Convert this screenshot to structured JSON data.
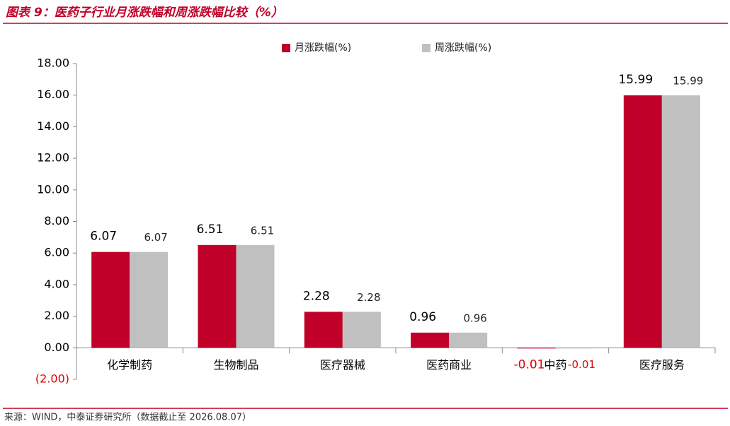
{
  "chart_data": {
    "type": "bar",
    "title": "图表 9：医药子行业月涨跌幅和周涨跌幅比较（%）",
    "source": "来源：WIND，中泰证券研究所（数据截止至 2026.08.07）",
    "categories": [
      "化学制药",
      "生物制品",
      "医疗器械",
      "医药商业",
      "中药",
      "医疗服务"
    ],
    "series": [
      {
        "name": "月涨跌幅(%)",
        "color": "#c00028",
        "values": [
          6.07,
          6.51,
          2.28,
          0.96,
          -0.01,
          15.99
        ]
      },
      {
        "name": "周涨跌幅(%)",
        "color": "#c0c0c0",
        "values": [
          6.07,
          6.51,
          2.28,
          0.96,
          -0.01,
          15.99
        ]
      }
    ],
    "ylim": [
      -2,
      18
    ],
    "yticks": [
      {
        "value": -2,
        "label": "(2.00)"
      },
      {
        "value": 0,
        "label": "0.00"
      },
      {
        "value": 2,
        "label": "2.00"
      },
      {
        "value": 4,
        "label": "4.00"
      },
      {
        "value": 6,
        "label": "6.00"
      },
      {
        "value": 8,
        "label": "8.00"
      },
      {
        "value": 10,
        "label": "10.00"
      },
      {
        "value": 12,
        "label": "12.00"
      },
      {
        "value": 14,
        "label": "14.00"
      },
      {
        "value": 16,
        "label": "16.00"
      },
      {
        "value": 18,
        "label": "18.00"
      }
    ],
    "legend": "top",
    "grid": false
  }
}
